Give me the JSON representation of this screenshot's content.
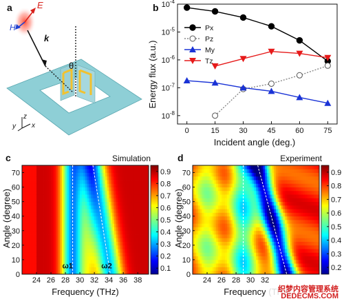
{
  "panels": {
    "a": {
      "letter": "a",
      "labels": {
        "e_field": "E",
        "h_field": "H",
        "k_vector": "k",
        "theta": "θ",
        "axis_x": "x",
        "axis_y": "y",
        "axis_z": "z"
      }
    },
    "b": {
      "letter": "b"
    },
    "c": {
      "letter": "c"
    },
    "d": {
      "letter": "d"
    }
  },
  "watermark": {
    "line1": "织梦内容管理系统",
    "line2": "DEDECMS.COM"
  },
  "colors": {
    "Px": "#000000",
    "Pz": "#888888",
    "My": "#1a33d6",
    "Tz": "#e61a1a",
    "metasurface": "#8ecfd6",
    "resonator": "#f2c12e",
    "beam": "#e8341c",
    "marker_line": "#ffffff"
  },
  "chart_data": [
    {
      "panel": "b",
      "type": "line",
      "xlabel": "Incident angle (deg.)",
      "ylabel": "Energy flux (a.u.)",
      "log_y": true,
      "xlim": [
        -5,
        80
      ],
      "ylim": [
        5e-09,
        0.0001
      ],
      "xticks": [
        "0",
        "15",
        "30",
        "45",
        "60",
        "75"
      ],
      "yticks": [
        "10-8",
        "10-7",
        "10-6",
        "10-5",
        "10-4"
      ],
      "legend_position": "upper-left",
      "series": [
        {
          "name": "Px",
          "marker": "filled-circle",
          "line": "solid",
          "x": [
            0,
            15,
            30,
            45,
            60,
            75
          ],
          "y": [
            7.5e-05,
            5.5e-05,
            3.3e-05,
            1.6e-05,
            5e-06,
            9e-07
          ]
        },
        {
          "name": "Pz",
          "marker": "open-circle",
          "line": "dotted",
          "x": [
            15,
            30,
            45,
            60,
            75
          ],
          "y": [
            1e-08,
            9e-08,
            1.4e-07,
            2.8e-07,
            6.2e-07
          ]
        },
        {
          "name": "My",
          "marker": "triangle-up",
          "line": "solid",
          "x": [
            0,
            15,
            30,
            45,
            60,
            75
          ],
          "y": [
            1.8e-07,
            1.5e-07,
            1e-07,
            7.5e-08,
            4.5e-08,
            2.8e-08
          ]
        },
        {
          "name": "Tz",
          "marker": "triangle-down",
          "line": "solid",
          "x": [
            15,
            30,
            45,
            60,
            75
          ],
          "y": [
            6e-07,
            1.1e-06,
            2e-06,
            1.7e-06,
            1.2e-06
          ]
        }
      ]
    },
    {
      "panel": "c",
      "type": "heatmap",
      "title": "Simulation",
      "xlabel": "Frequency (THz)",
      "ylabel": "Angle (degree)",
      "xlim": [
        22,
        39.5
      ],
      "ylim": [
        0,
        75
      ],
      "xticks": [
        "24",
        "26",
        "28",
        "30",
        "32",
        "34",
        "36",
        "38"
      ],
      "yticks": [
        "0",
        "10",
        "20",
        "30",
        "40",
        "50",
        "60",
        "70"
      ],
      "colorbar_ticks": [
        "0.1",
        "0.2",
        "0.3",
        "0.4",
        "0.5",
        "0.6",
        "0.7",
        "0.8",
        "0.9"
      ],
      "colorbar_range": [
        0.05,
        0.95
      ],
      "colormap": "jet",
      "annotations": [
        {
          "text": "ω1",
          "x": 28.3,
          "y": 4
        },
        {
          "text": "ω2",
          "x": 33.7,
          "y": 4
        }
      ],
      "guide_lines": [
        {
          "x": [
            29.0,
            29.0
          ],
          "y": [
            0,
            75
          ]
        },
        {
          "x": [
            31.8,
            34.2
          ],
          "y": [
            75,
            0
          ]
        }
      ]
    },
    {
      "panel": "d",
      "type": "heatmap",
      "title": "Experiment",
      "xlabel": "Frequency (THz)",
      "ylabel": "Angle (degree)",
      "xlim": [
        22,
        39.5
      ],
      "ylim": [
        0,
        75
      ],
      "xticks": [
        "24",
        "26",
        "28",
        "30",
        "32"
      ],
      "yticks": [
        "0",
        "10",
        "20",
        "30",
        "40",
        "50",
        "60",
        "70"
      ],
      "colorbar_ticks": [
        "0.2",
        "0.3",
        "0.4",
        "0.5",
        "0.6",
        "0.7",
        "0.8",
        "0.9"
      ],
      "colorbar_range": [
        0.15,
        0.95
      ],
      "colormap": "jet",
      "guide_lines": [
        {
          "x": [
            29.0,
            29.0
          ],
          "y": [
            0,
            75
          ]
        },
        {
          "x": [
            31.0,
            35.0
          ],
          "y": [
            75,
            0
          ]
        }
      ]
    }
  ]
}
